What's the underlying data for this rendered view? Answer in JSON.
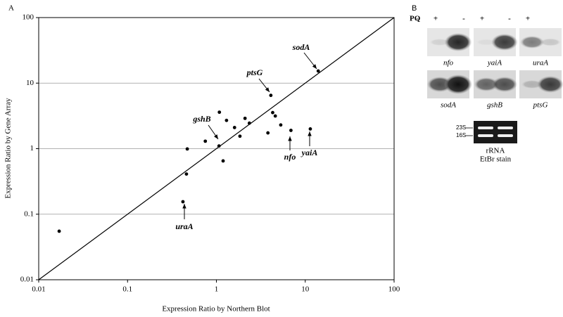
{
  "chart_data": {
    "type": "scatter",
    "panel_label": "A",
    "xlabel": "Expression Ratio by Northern Blot",
    "ylabel": "Expression Ratio by Gene Array",
    "x": [
      0.017,
      0.42,
      0.46,
      0.47,
      0.75,
      1.07,
      1.08,
      1.19,
      1.3,
      1.6,
      1.84,
      2.1,
      2.35,
      3.8,
      4.1,
      4.3,
      4.6,
      5.3,
      6.9,
      11.4,
      14
    ],
    "y": [
      0.055,
      0.155,
      0.41,
      0.99,
      1.3,
      1.1,
      3.6,
      0.65,
      2.7,
      2.1,
      1.55,
      2.9,
      2.45,
      1.74,
      6.5,
      3.55,
      3.15,
      2.3,
      1.9,
      2.0,
      15.3
    ],
    "xlim": [
      0.01,
      100
    ],
    "ylim": [
      0.01,
      100
    ],
    "xticks": [
      0.01,
      0.1,
      1,
      10,
      100
    ],
    "yticks": [
      0.01,
      0.1,
      1,
      10,
      100
    ],
    "log_x": true,
    "log_y": true,
    "grid": "y",
    "color": "#000000",
    "annotations": [
      {
        "text": "sodA"
      },
      {
        "text": "ptsG"
      },
      {
        "text": "gshB"
      },
      {
        "text": "nfo"
      },
      {
        "text": "yaiA"
      },
      {
        "text": "uraA"
      }
    ]
  },
  "panel_b": {
    "label": "B",
    "treatment": "PQ",
    "lanes": [
      "-",
      "+"
    ],
    "blot_rows": [
      [
        "nfo",
        "yaiA",
        "uraA"
      ],
      [
        "sodA",
        "gshB",
        "ptsG"
      ]
    ],
    "gel_markers": [
      "23S",
      "16S"
    ],
    "gel_caption": [
      "rRNA",
      "EtBr stain"
    ]
  }
}
